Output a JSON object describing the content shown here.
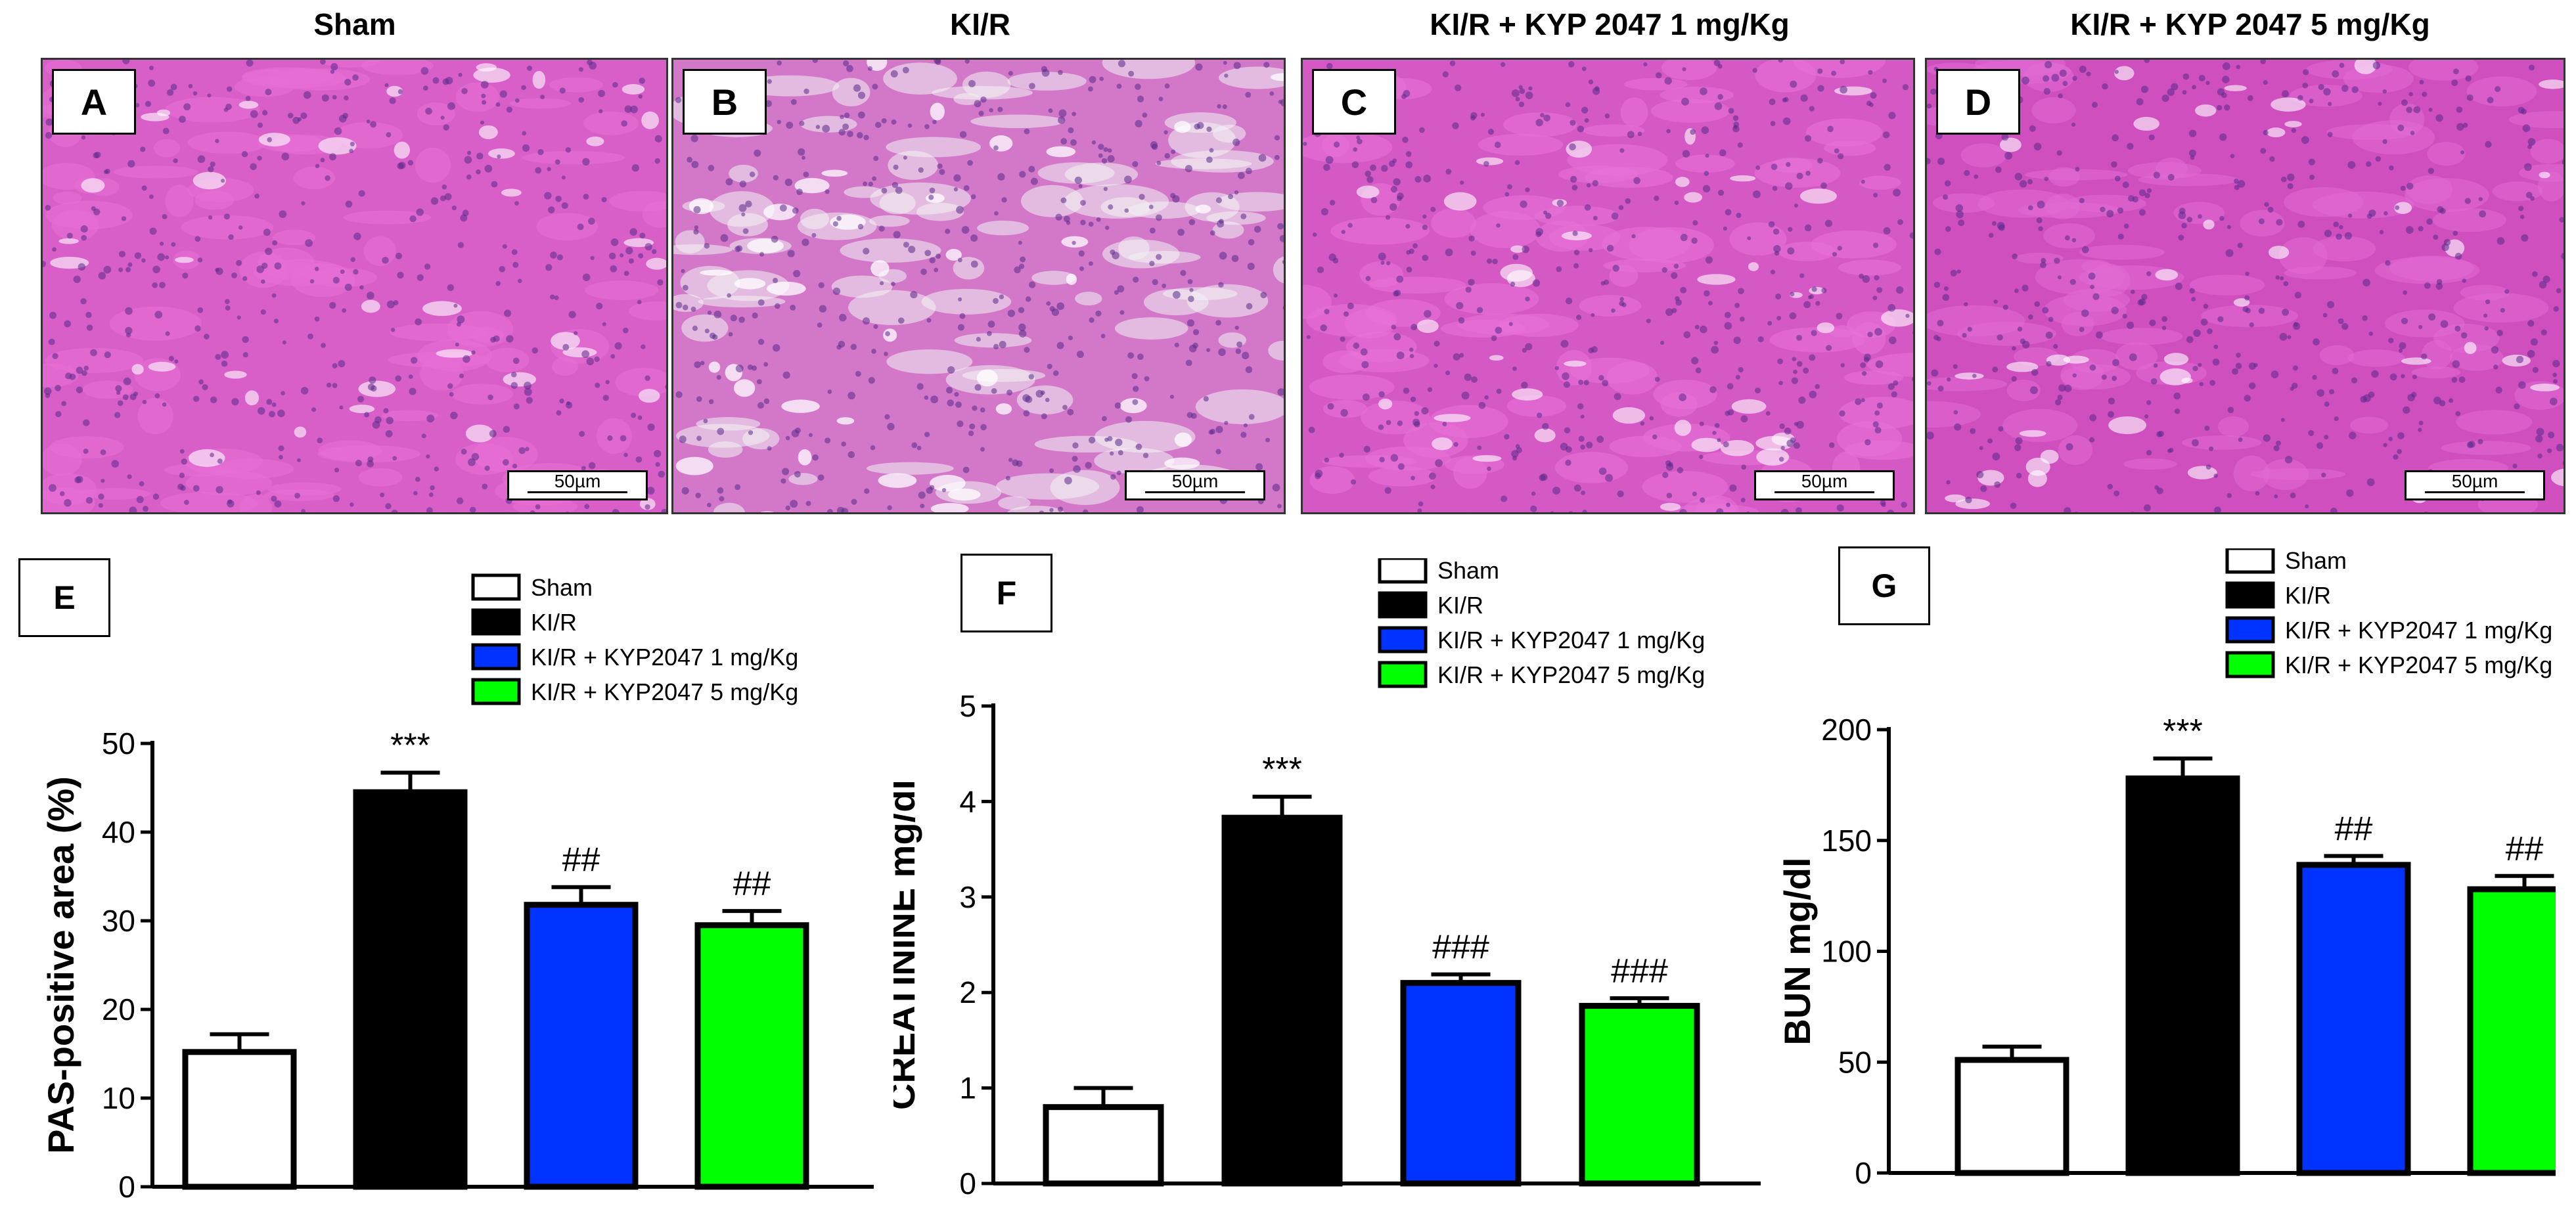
{
  "micrographs": [
    {
      "title": "Sham",
      "label": "A",
      "scale": "50µm",
      "bg": "#d85fc8",
      "tint": "#e86fd6"
    },
    {
      "title": "KI/R",
      "label": "B",
      "scale": "50µm",
      "bg": "#d378c9",
      "tint": "#f2f2f2"
    },
    {
      "title": "KI/R + KYP 2047  1 mg/Kg",
      "label": "C",
      "scale": "50µm",
      "bg": "#d559c4",
      "tint": "#e873d8"
    },
    {
      "title": "KI/R + KYP 2047  5 mg/Kg",
      "label": "D",
      "scale": "50µm",
      "bg": "#cf4fbf",
      "tint": "#e16bd3"
    }
  ],
  "colors": {
    "sham": "#ffffff",
    "kir": "#000000",
    "low": "#0033ff",
    "high": "#00ff00"
  },
  "legend": [
    "Sham",
    "KI/R",
    "KI/R + KYP2047 1 mg/Kg",
    "KI/R + KYP2047 5 mg/Kg"
  ],
  "chart_data": [
    {
      "panel": "E",
      "type": "bar",
      "categories": [
        "Sham",
        "KI/R",
        "KI/R + KYP2047 1 mg/Kg",
        "KI/R + KYP2047 5 mg/Kg"
      ],
      "values": [
        15.2,
        44.5,
        31.8,
        29.5
      ],
      "errors": [
        2.0,
        2.2,
        2.0,
        1.6
      ],
      "annotations": [
        "",
        "***",
        "##",
        "##"
      ],
      "ylabel": "PAS-positive area (%)",
      "ylim": [
        0,
        50
      ],
      "yticks": [
        0,
        10,
        20,
        30,
        40,
        50
      ]
    },
    {
      "panel": "F",
      "type": "bar",
      "categories": [
        "Sham",
        "KI/R",
        "KI/R + KYP2047 1 mg/Kg",
        "KI/R + KYP2047 5 mg/Kg"
      ],
      "values": [
        0.8,
        3.83,
        2.1,
        1.86
      ],
      "errors": [
        0.2,
        0.22,
        0.09,
        0.08
      ],
      "annotations": [
        "",
        "***",
        "###",
        "###"
      ],
      "ylabel": "CREATININE mg/dl",
      "ylim": [
        0,
        5
      ],
      "yticks": [
        0,
        1,
        2,
        3,
        4,
        5
      ]
    },
    {
      "panel": "G",
      "type": "bar",
      "categories": [
        "Sham",
        "KI/R",
        "KI/R + KYP2047 1 mg/Kg",
        "KI/R + KYP2047 5 mg/Kg"
      ],
      "values": [
        51,
        178,
        139,
        128
      ],
      "errors": [
        6,
        9,
        4,
        6
      ],
      "annotations": [
        "",
        "***",
        "##",
        "##"
      ],
      "ylabel": "BUN mg/dl",
      "ylim": [
        0,
        200
      ],
      "yticks": [
        0,
        50,
        100,
        150,
        200
      ]
    }
  ]
}
